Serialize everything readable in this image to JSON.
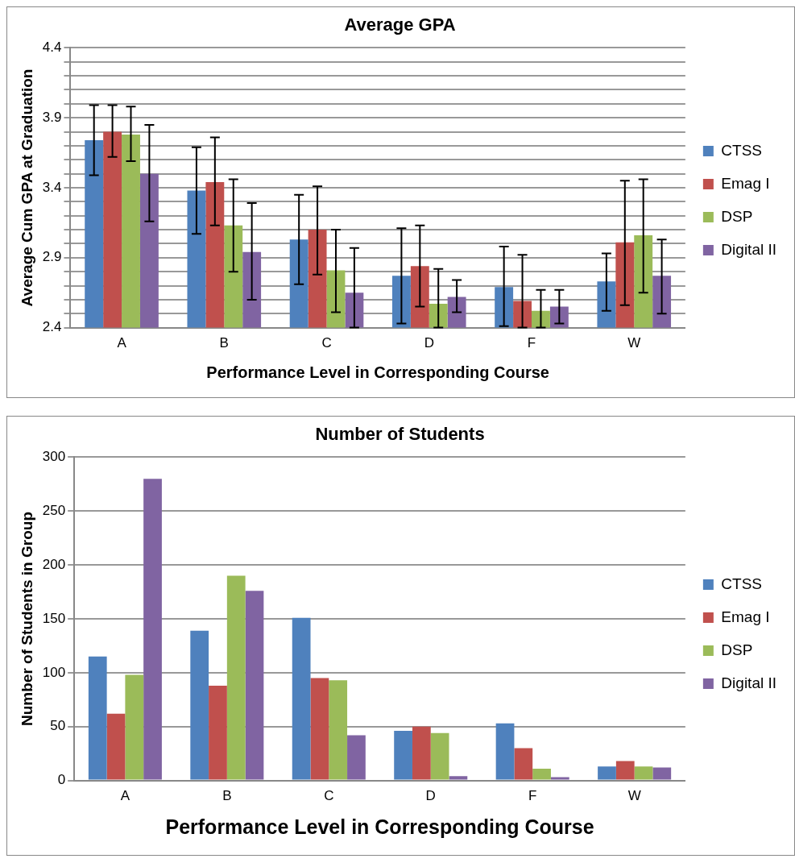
{
  "chart_data": [
    {
      "type": "bar",
      "title": "Average GPA",
      "xlabel": "Performance Level in Corresponding Course",
      "ylabel": "Average Cum GPA at Graduation",
      "categories": [
        "A",
        "B",
        "C",
        "D",
        "F",
        "W"
      ],
      "series": [
        {
          "name": "CTSS",
          "color": "#4f81bd",
          "values": [
            3.74,
            3.38,
            3.03,
            2.77,
            2.69,
            2.73
          ],
          "errors": [
            [
              3.49,
              3.99
            ],
            [
              3.07,
              3.69
            ],
            [
              2.71,
              3.35
            ],
            [
              2.43,
              3.11
            ],
            [
              2.41,
              2.98
            ],
            [
              2.52,
              2.93
            ]
          ]
        },
        {
          "name": "Emag I",
          "color": "#c0504d",
          "values": [
            3.8,
            3.44,
            3.1,
            2.84,
            2.59,
            3.01
          ],
          "errors": [
            [
              3.62,
              3.99
            ],
            [
              3.13,
              3.76
            ],
            [
              2.78,
              3.41
            ],
            [
              2.55,
              3.13
            ],
            [
              2.4,
              2.92
            ],
            [
              2.56,
              3.45
            ]
          ]
        },
        {
          "name": "DSP",
          "color": "#9bbb59",
          "values": [
            3.78,
            3.13,
            2.81,
            2.57,
            2.52,
            3.06
          ],
          "errors": [
            [
              3.59,
              3.98
            ],
            [
              2.8,
              3.46
            ],
            [
              2.51,
              3.1
            ],
            [
              2.4,
              2.82
            ],
            [
              2.4,
              2.67
            ],
            [
              2.65,
              3.46
            ]
          ]
        },
        {
          "name": "Digital II",
          "color": "#8064a2",
          "values": [
            3.5,
            2.94,
            2.65,
            2.62,
            2.55,
            2.77
          ],
          "errors": [
            [
              3.16,
              3.85
            ],
            [
              2.6,
              3.29
            ],
            [
              2.4,
              2.97
            ],
            [
              2.51,
              2.74
            ],
            [
              2.43,
              2.67
            ],
            [
              2.5,
              3.03
            ]
          ]
        }
      ],
      "ylim": [
        2.4,
        4.4
      ],
      "yticks": [
        2.4,
        {
          "value": 2.5,
          "label": null
        },
        {
          "value": 2.6,
          "label": null
        },
        {
          "value": 2.7,
          "label": null
        },
        {
          "value": 2.8,
          "label": null
        },
        2.9,
        {
          "value": 3.0,
          "label": null
        },
        {
          "value": 3.1,
          "label": null
        },
        {
          "value": 3.2,
          "label": null
        },
        {
          "value": 3.3,
          "label": null
        },
        3.4,
        {
          "value": 3.5,
          "label": null
        },
        {
          "value": 3.6,
          "label": null
        },
        {
          "value": 3.7,
          "label": null
        },
        {
          "value": 3.8,
          "label": null
        },
        3.9,
        {
          "value": 4.0,
          "label": null
        },
        {
          "value": 4.1,
          "label": null
        },
        {
          "value": 4.2,
          "label": null
        },
        {
          "value": 4.3,
          "label": null
        },
        4.4
      ],
      "grid": "y",
      "legend": "right"
    },
    {
      "type": "bar",
      "title": "Number of Students",
      "xlabel": "Performance Level in Corresponding Course",
      "ylabel": "Number of Students in Group",
      "categories": [
        "A",
        "B",
        "C",
        "D",
        "F",
        "W"
      ],
      "series": [
        {
          "name": "CTSS",
          "color": "#4f81bd",
          "values": [
            115,
            139,
            151,
            46,
            53,
            13
          ]
        },
        {
          "name": "Emag I",
          "color": "#c0504d",
          "values": [
            62,
            88,
            95,
            50,
            30,
            18
          ]
        },
        {
          "name": "DSP",
          "color": "#9bbb59",
          "values": [
            98,
            190,
            93,
            44,
            11,
            13
          ]
        },
        {
          "name": "Digital II",
          "color": "#8064a2",
          "values": [
            280,
            176,
            42,
            4,
            3,
            12
          ]
        }
      ],
      "ylim": [
        0,
        300
      ],
      "yticks": [
        0,
        50,
        100,
        150,
        200,
        250,
        300
      ],
      "grid": "y",
      "legend": "right"
    }
  ]
}
